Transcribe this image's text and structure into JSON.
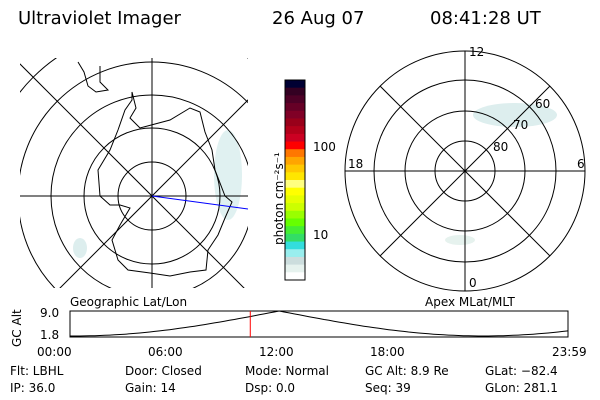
{
  "header": {
    "instrument": "Ultraviolet Imager",
    "date": "26 Aug 07",
    "time": "08:41:28 UT"
  },
  "left_map": {
    "label": "Geographic Lat/Lon"
  },
  "right_map": {
    "label": "Apex MLat/MLT",
    "mlt_labels": {
      "top": "12",
      "bottom": "0",
      "left": "18",
      "right": "6"
    },
    "lat_labels": [
      "80",
      "70",
      "60"
    ]
  },
  "colorbar": {
    "unit_label": "photon cm⁻²s⁻¹",
    "tick_labels": [
      "100",
      "10"
    ],
    "colors": [
      "#000033",
      "#330022",
      "#4d0026",
      "#660026",
      "#800026",
      "#99001a",
      "#b3001a",
      "#cc0022",
      "#ff0000",
      "#ff7700",
      "#ffa500",
      "#ffc800",
      "#ffe600",
      "#ffff80",
      "#ffff00",
      "#e6ff00",
      "#ccff00",
      "#99ff00",
      "#66ff00",
      "#44ee33",
      "#33dd66",
      "#33dddd",
      "#99eeee",
      "#ccdddd",
      "#e6f2ee",
      "#ffffff"
    ]
  },
  "timeline": {
    "ylabel": "GC Alt",
    "ymax_label": "9.0",
    "ymin_label": "1.8",
    "x_labels": [
      "00:00",
      "06:00",
      "12:00",
      "18:00",
      "23:59"
    ],
    "current_time_fraction": 0.362,
    "accent": "#ff0000"
  },
  "info": [
    [
      "Flt: LBHL",
      "Door: Closed",
      "Mode: Normal",
      "GC Alt: 8.9 Re",
      "GLat: −82.4"
    ],
    [
      "IP: 36.0",
      "Gain: 14",
      "Dsp:     0.0",
      "Seq: 39",
      "GLon: 281.1"
    ]
  ]
}
